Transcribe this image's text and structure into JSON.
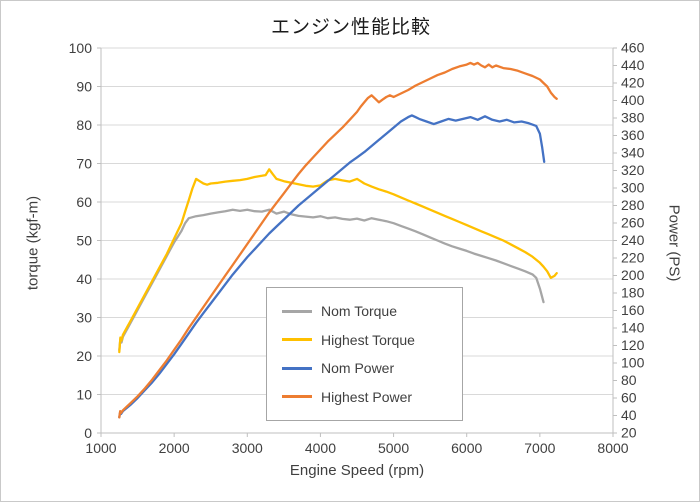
{
  "chart_data": {
    "type": "line",
    "title": "エンジン性能比較",
    "x_axis": {
      "label": "Engine Speed (rpm)",
      "min": 1000,
      "max": 8000,
      "tick_step": 1000
    },
    "y_left": {
      "label": "torque (kgf-m)",
      "min": 0,
      "max": 100,
      "tick_step": 10
    },
    "y_right": {
      "label": "Power (PS)",
      "min": 20,
      "max": 460,
      "tick_step": 20
    },
    "grid": "horizontal",
    "legend_position": "inside-bottom-center",
    "colors": {
      "gridline": "#d9d9d9",
      "axis_line": "#bfbfbf",
      "tick_label": "#404040",
      "title": "#1a1a1a"
    },
    "series": [
      {
        "name": "Nom Torque",
        "color": "#a6a6a6",
        "axis": "left",
        "points": [
          [
            1250,
            21.5
          ],
          [
            1265,
            24.5
          ],
          [
            1280,
            23.5
          ],
          [
            1300,
            25
          ],
          [
            1400,
            28.5
          ],
          [
            1500,
            32
          ],
          [
            1600,
            35.5
          ],
          [
            1700,
            39
          ],
          [
            1800,
            42.5
          ],
          [
            1900,
            46
          ],
          [
            2000,
            49.5
          ],
          [
            2050,
            51
          ],
          [
            2100,
            52.5
          ],
          [
            2150,
            54.5
          ],
          [
            2200,
            55.8
          ],
          [
            2300,
            56.3
          ],
          [
            2400,
            56.6
          ],
          [
            2500,
            57
          ],
          [
            2600,
            57.3
          ],
          [
            2700,
            57.6
          ],
          [
            2800,
            58
          ],
          [
            2900,
            57.7
          ],
          [
            3000,
            58
          ],
          [
            3100,
            57.6
          ],
          [
            3200,
            57.5
          ],
          [
            3300,
            58
          ],
          [
            3400,
            57
          ],
          [
            3500,
            57.5
          ],
          [
            3600,
            56.8
          ],
          [
            3700,
            56.4
          ],
          [
            3800,
            56.2
          ],
          [
            3900,
            56
          ],
          [
            4000,
            56.3
          ],
          [
            4100,
            55.8
          ],
          [
            4200,
            56
          ],
          [
            4300,
            55.6
          ],
          [
            4400,
            55.4
          ],
          [
            4500,
            55.7
          ],
          [
            4600,
            55.2
          ],
          [
            4700,
            55.8
          ],
          [
            4800,
            55.4
          ],
          [
            4900,
            55
          ],
          [
            5000,
            54.5
          ],
          [
            5100,
            53.8
          ],
          [
            5200,
            53.1
          ],
          [
            5300,
            52.4
          ],
          [
            5400,
            51.6
          ],
          [
            5500,
            50.8
          ],
          [
            5600,
            50
          ],
          [
            5700,
            49.2
          ],
          [
            5800,
            48.5
          ],
          [
            5900,
            47.9
          ],
          [
            6000,
            47.3
          ],
          [
            6100,
            46.6
          ],
          [
            6200,
            46
          ],
          [
            6300,
            45.4
          ],
          [
            6400,
            44.8
          ],
          [
            6500,
            44.1
          ],
          [
            6600,
            43.4
          ],
          [
            6700,
            42.7
          ],
          [
            6800,
            42
          ],
          [
            6900,
            41.2
          ],
          [
            6950,
            40.3
          ],
          [
            7000,
            37.5
          ],
          [
            7050,
            34
          ]
        ]
      },
      {
        "name": "Highest Torque",
        "color": "#ffc000",
        "axis": "left",
        "points": [
          [
            1250,
            21
          ],
          [
            1265,
            24.8
          ],
          [
            1280,
            24
          ],
          [
            1300,
            25.5
          ],
          [
            1400,
            29
          ],
          [
            1500,
            32.5
          ],
          [
            1600,
            36
          ],
          [
            1700,
            39.5
          ],
          [
            1800,
            43
          ],
          [
            1900,
            46.5
          ],
          [
            2000,
            50.5
          ],
          [
            2050,
            52.5
          ],
          [
            2100,
            54.5
          ],
          [
            2150,
            57.5
          ],
          [
            2200,
            60.5
          ],
          [
            2250,
            63.5
          ],
          [
            2300,
            66
          ],
          [
            2350,
            65.4
          ],
          [
            2400,
            64.8
          ],
          [
            2450,
            64.5
          ],
          [
            2500,
            64.8
          ],
          [
            2600,
            65
          ],
          [
            2700,
            65.3
          ],
          [
            2800,
            65.5
          ],
          [
            2900,
            65.7
          ],
          [
            3000,
            66
          ],
          [
            3100,
            66.5
          ],
          [
            3200,
            66.8
          ],
          [
            3250,
            67
          ],
          [
            3300,
            68.5
          ],
          [
            3350,
            67.2
          ],
          [
            3400,
            66
          ],
          [
            3500,
            65.4
          ],
          [
            3600,
            65
          ],
          [
            3700,
            64.6
          ],
          [
            3800,
            64.2
          ],
          [
            3900,
            64
          ],
          [
            4000,
            64.3
          ],
          [
            4050,
            65
          ],
          [
            4100,
            65.6
          ],
          [
            4200,
            66
          ],
          [
            4300,
            65.6
          ],
          [
            4400,
            65.3
          ],
          [
            4500,
            66
          ],
          [
            4550,
            65.4
          ],
          [
            4600,
            64.8
          ],
          [
            4700,
            64
          ],
          [
            4800,
            63.3
          ],
          [
            4900,
            62.7
          ],
          [
            5000,
            62
          ],
          [
            5100,
            61.2
          ],
          [
            5200,
            60.4
          ],
          [
            5300,
            59.6
          ],
          [
            5400,
            58.8
          ],
          [
            5500,
            58
          ],
          [
            5600,
            57.2
          ],
          [
            5700,
            56.4
          ],
          [
            5800,
            55.6
          ],
          [
            5900,
            54.8
          ],
          [
            6000,
            54
          ],
          [
            6100,
            53.2
          ],
          [
            6200,
            52.4
          ],
          [
            6300,
            51.6
          ],
          [
            6400,
            50.8
          ],
          [
            6500,
            50
          ],
          [
            6600,
            49
          ],
          [
            6700,
            48
          ],
          [
            6800,
            47
          ],
          [
            6900,
            45.8
          ],
          [
            7000,
            44.2
          ],
          [
            7050,
            43.2
          ],
          [
            7100,
            42
          ],
          [
            7150,
            40.3
          ],
          [
            7200,
            40.8
          ],
          [
            7230,
            41.5
          ]
        ]
      },
      {
        "name": "Nom Power",
        "color": "#4472c4",
        "axis": "right",
        "points": [
          [
            1250,
            38
          ],
          [
            1262,
            44
          ],
          [
            1275,
            42
          ],
          [
            1300,
            45
          ],
          [
            1400,
            52
          ],
          [
            1500,
            60
          ],
          [
            1600,
            69
          ],
          [
            1700,
            78
          ],
          [
            1800,
            88
          ],
          [
            1900,
            99
          ],
          [
            2000,
            110
          ],
          [
            2100,
            122
          ],
          [
            2200,
            134
          ],
          [
            2300,
            146
          ],
          [
            2400,
            157
          ],
          [
            2500,
            168
          ],
          [
            2600,
            179
          ],
          [
            2700,
            190
          ],
          [
            2800,
            201
          ],
          [
            2900,
            211
          ],
          [
            3000,
            221
          ],
          [
            3100,
            230
          ],
          [
            3200,
            239
          ],
          [
            3300,
            248
          ],
          [
            3400,
            256
          ],
          [
            3500,
            264
          ],
          [
            3600,
            272
          ],
          [
            3700,
            280
          ],
          [
            3800,
            287
          ],
          [
            3900,
            294
          ],
          [
            4000,
            301
          ],
          [
            4100,
            308
          ],
          [
            4200,
            315
          ],
          [
            4300,
            322
          ],
          [
            4400,
            329
          ],
          [
            4500,
            335
          ],
          [
            4600,
            341
          ],
          [
            4700,
            348
          ],
          [
            4800,
            355
          ],
          [
            4900,
            362
          ],
          [
            5000,
            369
          ],
          [
            5100,
            376
          ],
          [
            5200,
            381
          ],
          [
            5250,
            383
          ],
          [
            5300,
            381
          ],
          [
            5350,
            379
          ],
          [
            5450,
            376
          ],
          [
            5550,
            373
          ],
          [
            5650,
            376
          ],
          [
            5750,
            379
          ],
          [
            5850,
            377
          ],
          [
            5950,
            379
          ],
          [
            6050,
            381
          ],
          [
            6150,
            378
          ],
          [
            6250,
            382
          ],
          [
            6350,
            378
          ],
          [
            6450,
            376
          ],
          [
            6550,
            378
          ],
          [
            6650,
            375
          ],
          [
            6750,
            376
          ],
          [
            6850,
            374
          ],
          [
            6950,
            371
          ],
          [
            7000,
            362
          ],
          [
            7030,
            347
          ],
          [
            7060,
            330
          ]
        ]
      },
      {
        "name": "Highest Power",
        "color": "#ed7d31",
        "axis": "right",
        "points": [
          [
            1250,
            38
          ],
          [
            1262,
            45
          ],
          [
            1275,
            43
          ],
          [
            1300,
            46
          ],
          [
            1400,
            54
          ],
          [
            1500,
            62
          ],
          [
            1600,
            71
          ],
          [
            1700,
            81
          ],
          [
            1800,
            92
          ],
          [
            1900,
            103
          ],
          [
            2000,
            115
          ],
          [
            2100,
            127
          ],
          [
            2200,
            140
          ],
          [
            2300,
            152
          ],
          [
            2400,
            164
          ],
          [
            2500,
            176
          ],
          [
            2600,
            188
          ],
          [
            2700,
            200
          ],
          [
            2800,
            212
          ],
          [
            2900,
            224
          ],
          [
            3000,
            236
          ],
          [
            3100,
            248
          ],
          [
            3200,
            260
          ],
          [
            3300,
            272
          ],
          [
            3400,
            283
          ],
          [
            3500,
            294
          ],
          [
            3600,
            305
          ],
          [
            3700,
            316
          ],
          [
            3800,
            326
          ],
          [
            3900,
            335
          ],
          [
            4000,
            344
          ],
          [
            4100,
            353
          ],
          [
            4200,
            361
          ],
          [
            4300,
            369
          ],
          [
            4400,
            378
          ],
          [
            4500,
            387
          ],
          [
            4550,
            393
          ],
          [
            4600,
            398
          ],
          [
            4650,
            403
          ],
          [
            4700,
            406
          ],
          [
            4750,
            402
          ],
          [
            4800,
            398
          ],
          [
            4850,
            401
          ],
          [
            4900,
            404
          ],
          [
            4950,
            406
          ],
          [
            5000,
            404
          ],
          [
            5100,
            408
          ],
          [
            5200,
            412
          ],
          [
            5300,
            417
          ],
          [
            5400,
            421
          ],
          [
            5500,
            425
          ],
          [
            5600,
            429
          ],
          [
            5700,
            432
          ],
          [
            5800,
            436
          ],
          [
            5900,
            439
          ],
          [
            6000,
            441
          ],
          [
            6050,
            443
          ],
          [
            6100,
            441
          ],
          [
            6150,
            443
          ],
          [
            6200,
            440
          ],
          [
            6250,
            438
          ],
          [
            6300,
            441
          ],
          [
            6350,
            438
          ],
          [
            6400,
            440
          ],
          [
            6500,
            437
          ],
          [
            6600,
            436
          ],
          [
            6700,
            434
          ],
          [
            6800,
            431
          ],
          [
            6900,
            428
          ],
          [
            7000,
            424
          ],
          [
            7050,
            420
          ],
          [
            7100,
            416
          ],
          [
            7150,
            409
          ],
          [
            7200,
            404
          ],
          [
            7230,
            402
          ]
        ]
      }
    ]
  }
}
